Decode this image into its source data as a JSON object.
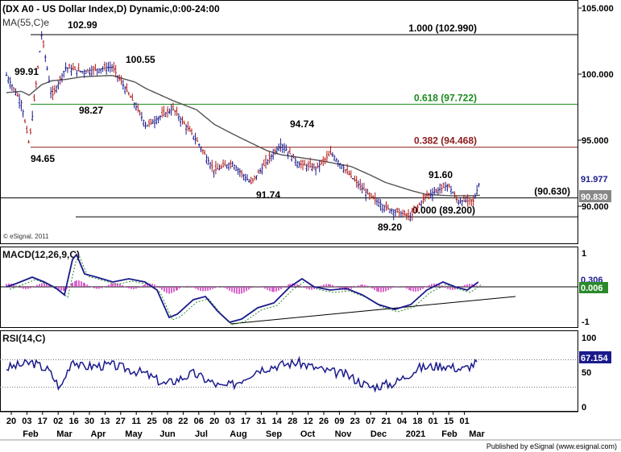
{
  "header": {
    "title": "(DX A0 - US Dollar Index,D) Dynamic,0:00-24:00",
    "ma_label": "MA(55,C)e"
  },
  "price_axis": {
    "ticks": [
      "105.000",
      "100.000",
      "95.000",
      "90.000"
    ],
    "tick_values": [
      105,
      100,
      95,
      90
    ]
  },
  "x_axis": {
    "day_labels": [
      "20",
      "03",
      "17",
      "02",
      "16",
      "30",
      "13",
      "27",
      "11",
      "25",
      "08",
      "22",
      "06",
      "20",
      "03",
      "17",
      "31",
      "14",
      "28",
      "12",
      "26",
      "09",
      "23",
      "07",
      "21",
      "04",
      "18",
      "01",
      "15",
      "01"
    ],
    "month_labels": [
      "Feb",
      "Mar",
      "Apr",
      "May",
      "Jun",
      "Jul",
      "Aug",
      "Sep",
      "Oct",
      "Nov",
      "Dec",
      "2021",
      "Feb",
      "Mar"
    ]
  },
  "fib_levels": [
    {
      "label": "1.000 (102.990)",
      "value": 102.99,
      "color": "#000000"
    },
    {
      "label": "0.618 (97.722)",
      "value": 97.722,
      "color": "#1a8a1a"
    },
    {
      "label": "0.382 (94.468)",
      "value": 94.468,
      "color": "#8b1a1a"
    },
    {
      "label": "0.000 (89.200)",
      "value": 89.2,
      "color": "#000000"
    }
  ],
  "level_90_630": {
    "label": "(90.630)",
    "value": 90.63
  },
  "annotations": [
    "102.99",
    "99.91",
    "100.55",
    "98.27",
    "94.65",
    "94.74",
    "91.74",
    "91.60",
    "89.20"
  ],
  "price_tags": {
    "last": {
      "text": "91.977",
      "value": 91.977,
      "color": "#1a1a8c"
    },
    "ma": {
      "text": "90.830",
      "value": 90.83,
      "color": "#888888"
    }
  },
  "copyright": "© eSignal, 2011",
  "macd": {
    "title": "MACD(12,26,9,C)",
    "ticks": [
      "1",
      "-1"
    ],
    "tag_macd": {
      "text": "0.306",
      "color": "#1a1a8c"
    },
    "tag_hist": {
      "text": "0.006",
      "color": "#1a8a1a"
    }
  },
  "rsi": {
    "title": "RSI(14,C)",
    "ticks": [
      "100",
      "50",
      "0"
    ],
    "tag": {
      "text": "67.154",
      "color": "#1a1a8c"
    }
  },
  "footer": "Published by eSignal (www.esignal.com)",
  "chart_data": {
    "type": "line",
    "title": "(DX A0 - US Dollar Index,D) Dynamic,0:00-24:00",
    "x": [
      "2020-02-20",
      "2020-03-03",
      "2020-03-09",
      "2020-03-19",
      "2020-03-27",
      "2020-04-07",
      "2020-04-20",
      "2020-05-14",
      "2020-06-01",
      "2020-06-10",
      "2020-07-01",
      "2020-07-20",
      "2020-08-03",
      "2020-08-17",
      "2020-09-01",
      "2020-09-14",
      "2020-09-25",
      "2020-10-09",
      "2020-10-23",
      "2020-11-04",
      "2020-11-20",
      "2020-12-04",
      "2020-12-17",
      "2021-01-06",
      "2021-01-18",
      "2021-02-05",
      "2021-02-12",
      "2021-02-25",
      "2021-03-02"
    ],
    "series": [
      {
        "name": "US Dollar Index",
        "values": [
          99.91,
          97.8,
          94.65,
          102.99,
          98.27,
          100.5,
          100.2,
          100.55,
          97.7,
          96.1,
          97.4,
          95.0,
          92.7,
          93.3,
          91.74,
          93.4,
          94.74,
          93.2,
          92.9,
          94.0,
          92.2,
          90.8,
          89.9,
          89.2,
          90.8,
          91.6,
          90.4,
          90.4,
          91.977
        ]
      },
      {
        "name": "MA(55,C)e",
        "values": [
          98.6,
          98.7,
          98.4,
          99.2,
          99.5,
          99.6,
          99.8,
          99.9,
          99.4,
          98.9,
          98.0,
          97.3,
          96.2,
          95.5,
          94.8,
          94.2,
          93.9,
          93.7,
          93.5,
          93.3,
          93.0,
          92.4,
          91.8,
          91.2,
          90.9,
          90.8,
          90.8,
          90.8,
          90.83
        ]
      }
    ],
    "ylim": [
      88,
      105
    ],
    "xlabel": "",
    "ylabel": "",
    "grid": false,
    "fibonacci": [
      {
        "ratio": "1.000",
        "value": 102.99
      },
      {
        "ratio": "0.618",
        "value": 97.722
      },
      {
        "ratio": "0.382",
        "value": 94.468
      },
      {
        "ratio": "0.000",
        "value": 89.2
      }
    ],
    "macd": {
      "title": "MACD(12,26,9,C)",
      "last_macd": 0.306,
      "last_histogram": 0.006
    },
    "rsi": {
      "title": "RSI(14,C)",
      "last": 67.154,
      "ylim": [
        0,
        100
      ]
    }
  }
}
